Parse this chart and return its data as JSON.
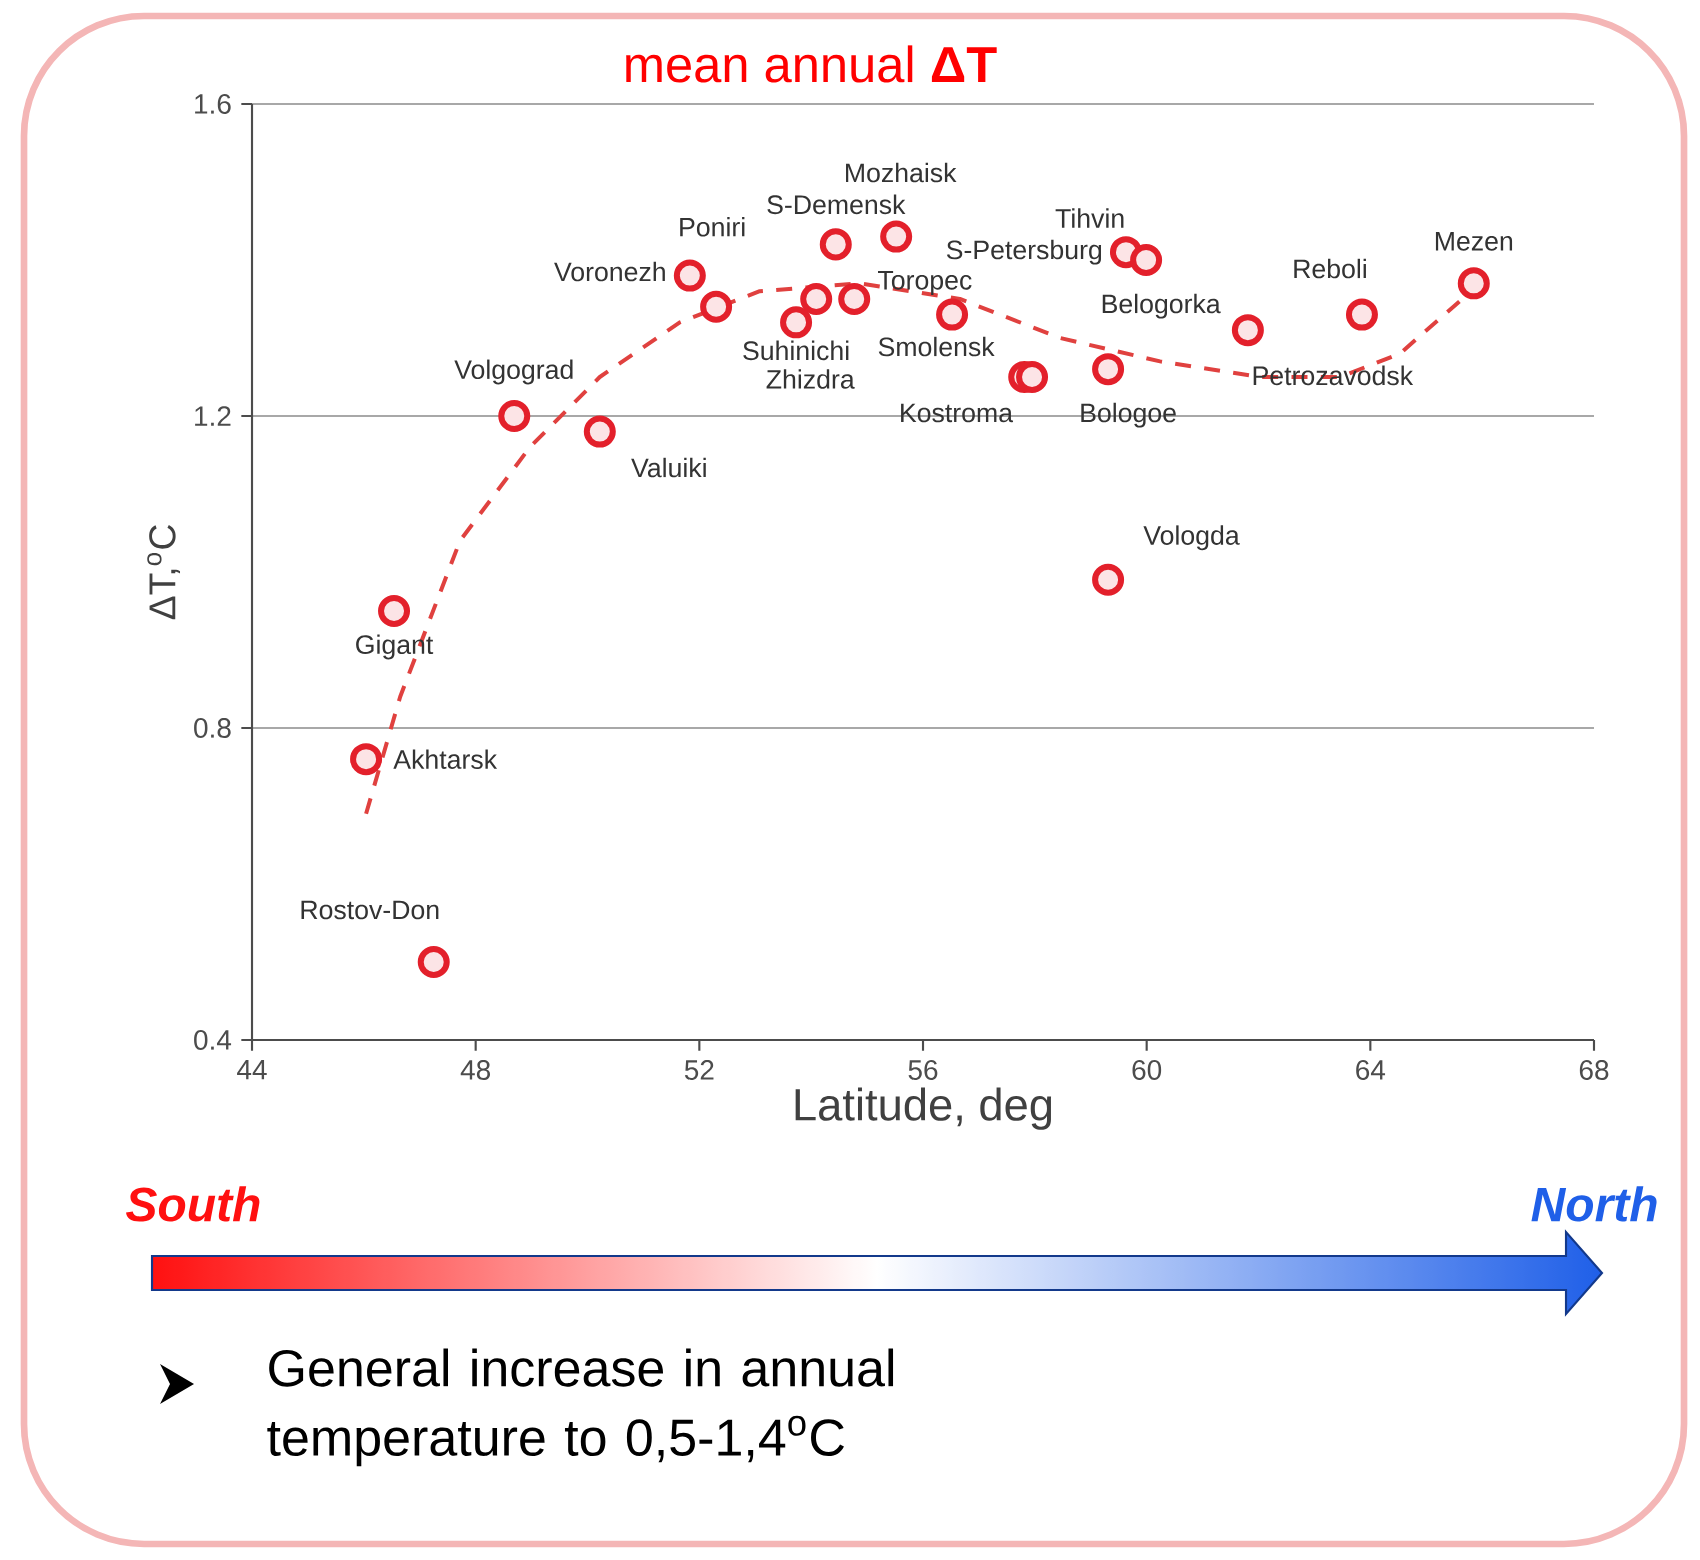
{
  "chart_data": {
    "type": "scatter",
    "title": "mean annual **ΔT**",
    "xlabel": "Latitude, deg",
    "ylabel": "ΔT,$^{o}$C",
    "annotations": [
      "South",
      "North",
      "General increase in annual temperature to 0,5-1,4$^{o}$C",
      "Petrozavodsk"
    ],
    "xlim": [
      44,
      68
    ],
    "ylim": [
      0.4,
      1.6
    ],
    "xticks": [
      44,
      48,
      52,
      56,
      60,
      64,
      68
    ],
    "yticks": [
      0.4,
      0.8,
      1.2,
      1.6
    ],
    "grid": "y",
    "series": [
      {
        "type": "line",
        "color": "#e0413f",
        "line_style": "dashed",
        "marker": "none",
        "x": [
          46.04,
          46.65,
          47.72,
          48.97,
          50.22,
          51.65,
          53.08,
          54.87,
          56.66,
          58.45,
          60.24,
          62.03,
          63.46,
          64.53,
          65.96
        ],
        "values": [
          0.69,
          0.84,
          1.04,
          1.16,
          1.25,
          1.32,
          1.36,
          1.37,
          1.35,
          1.3,
          1.27,
          1.25,
          1.25,
          1.28,
          1.37
        ]
      },
      {
        "type": "scatter",
        "marker": "circle",
        "color": "#e3202b",
        "x": [
          47.25,
          46.54,
          46.04,
          48.69,
          50.22,
          51.83,
          52.3,
          53.73,
          54.09,
          54.44,
          54.77,
          55.52,
          56.52,
          57.81,
          57.95,
          59.31,
          59.63,
          59.99,
          61.81,
          63.85,
          65.85,
          59.31
        ],
        "values": [
          0.5,
          0.95,
          0.76,
          1.2,
          1.18,
          1.38,
          1.34,
          1.32,
          1.35,
          1.42,
          1.35,
          1.43,
          1.33,
          1.25,
          1.25,
          1.26,
          1.41,
          1.4,
          1.31,
          1.33,
          1.37,
          0.99
        ],
        "value_labels": [
          "Rostov-Don",
          "Gigant",
          "Akhtarsk",
          "Volgograd",
          "Valuiki",
          "Voronezh",
          "Poniri",
          "Suhinichi",
          "Zhizdra",
          "S-Demensk",
          "Toropec",
          "Mozhaisk",
          "Smolensk",
          "Kostroma",
          null,
          "Bologoe",
          "S-Petersburg",
          "Tihvin",
          "Belogorka",
          "Reboli",
          "Mezen",
          "Vologda"
        ]
      }
    ]
  }
}
